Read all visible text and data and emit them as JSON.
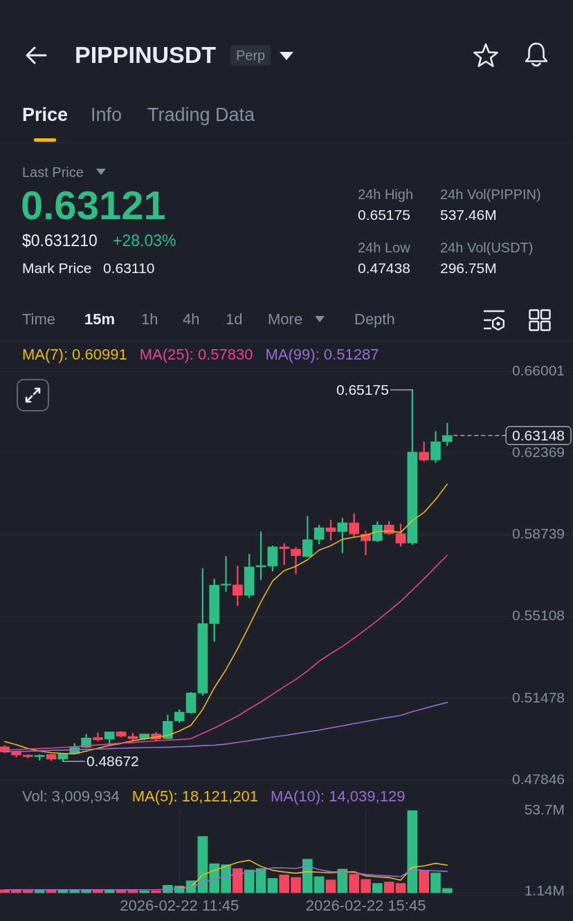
{
  "chart_data": [
    {
      "type": "other",
      "title": "PIPPINUSDT",
      "annotations": [
        "Perp",
        "Price",
        "Info",
        "Trading Data",
        "Last Price",
        "0.63121",
        "$0.631210",
        "+28.03%",
        "Mark Price",
        "0.63110",
        "24h High",
        "0.65175",
        "24h Vol(PIPPIN)",
        "537.46M",
        "24h Low",
        "0.47438",
        "24h Vol(USDT)",
        "296.75M",
        "Time",
        "15m",
        "1h",
        "4h",
        "1d",
        "More",
        "Depth"
      ]
    },
    {
      "type": "candlestick",
      "x": [
        "2026-02-22T08:00",
        "2026-02-22T08:15",
        "2026-02-22T08:30",
        "2026-02-22T08:45",
        "2026-02-22T09:00",
        "2026-02-22T09:15",
        "2026-02-22T09:30",
        "2026-02-22T09:45",
        "2026-02-22T10:00",
        "2026-02-22T10:15",
        "2026-02-22T10:30",
        "2026-02-22T10:45",
        "2026-02-22T11:00",
        "2026-02-22T11:15",
        "2026-02-22T11:30",
        "2026-02-22T11:45",
        "2026-02-22T12:00",
        "2026-02-22T12:15",
        "2026-02-22T12:30",
        "2026-02-22T12:45",
        "2026-02-22T13:00",
        "2026-02-22T13:15",
        "2026-02-22T13:30",
        "2026-02-22T13:45",
        "2026-02-22T14:00",
        "2026-02-22T14:15",
        "2026-02-22T14:30",
        "2026-02-22T14:45",
        "2026-02-22T15:00",
        "2026-02-22T15:15",
        "2026-02-22T15:30",
        "2026-02-22T15:45",
        "2026-02-22T16:00",
        "2026-02-22T16:15",
        "2026-02-22T16:30",
        "2026-02-22T16:45",
        "2026-02-22T17:00",
        "2026-02-22T17:15",
        "2026-02-22T17:30"
      ],
      "xlim": [
        "2026-02-22T07:54",
        "2026-02-22T20:11"
      ],
      "xticks": [
        {
          "value": "2026-02-22T11:45",
          "label": null
        },
        {
          "value": "2026-02-22T15:45",
          "label": null
        }
      ],
      "ohlc": [
        [
          0.4932,
          0.4937,
          0.4905,
          0.4909
        ],
        [
          0.4909,
          0.4912,
          0.4885,
          0.4895
        ],
        [
          0.4895,
          0.4897,
          0.4882,
          0.4888
        ],
        [
          0.4888,
          0.4897,
          0.4872,
          0.4894
        ],
        [
          0.4898,
          0.49,
          0.487,
          0.4877
        ],
        [
          0.4877,
          0.4904,
          0.48672,
          0.4902
        ],
        [
          0.4902,
          0.4947,
          0.49,
          0.493
        ],
        [
          0.493,
          0.4988,
          0.4928,
          0.4971
        ],
        [
          0.4973,
          0.4994,
          0.4957,
          0.4963
        ],
        [
          0.4966,
          0.4998,
          0.4945,
          0.4998
        ],
        [
          0.4998,
          0.5,
          0.4976,
          0.4979
        ],
        [
          0.4978,
          0.4993,
          0.4957,
          0.4968
        ],
        [
          0.4968,
          0.499,
          0.4963,
          0.4989
        ],
        [
          0.4989,
          0.4996,
          0.4957,
          0.4966
        ],
        [
          0.4968,
          0.5073,
          0.4966,
          0.5045
        ],
        [
          0.5047,
          0.5097,
          0.5041,
          0.5086
        ],
        [
          0.5083,
          0.5174,
          0.508,
          0.5171
        ],
        [
          0.517,
          0.5724,
          0.516,
          0.5479
        ],
        [
          0.5479,
          0.5677,
          0.54,
          0.565
        ],
        [
          0.565,
          0.5777,
          0.5622,
          0.5655
        ],
        [
          0.5651,
          0.5735,
          0.5559,
          0.5605
        ],
        [
          0.5605,
          0.5788,
          0.5594,
          0.5731
        ],
        [
          0.5731,
          0.5888,
          0.5674,
          0.5737
        ],
        [
          0.5735,
          0.5825,
          0.5712,
          0.582
        ],
        [
          0.582,
          0.5835,
          0.5741,
          0.5812
        ],
        [
          0.581,
          0.5818,
          0.57,
          0.5781
        ],
        [
          0.5777,
          0.5956,
          0.5776,
          0.5852
        ],
        [
          0.5853,
          0.5917,
          0.5833,
          0.5905
        ],
        [
          0.5905,
          0.5939,
          0.585,
          0.5888
        ],
        [
          0.5888,
          0.5948,
          0.5794,
          0.5927
        ],
        [
          0.5927,
          0.5968,
          0.5864,
          0.5878
        ],
        [
          0.5876,
          0.5891,
          0.5784,
          0.5847
        ],
        [
          0.5847,
          0.5932,
          0.5843,
          0.5917
        ],
        [
          0.5917,
          0.5934,
          0.5875,
          0.5879
        ],
        [
          0.5879,
          0.5922,
          0.5823,
          0.5837
        ],
        [
          0.5837,
          0.65175,
          0.583,
          0.6241
        ],
        [
          0.6241,
          0.6287,
          0.6201,
          0.6206
        ],
        [
          0.6206,
          0.6333,
          0.6195,
          0.6287
        ],
        [
          0.6288,
          0.637,
          0.627,
          0.63148
        ]
      ],
      "colors": [
        "#f6465d",
        "#f6465d",
        "#f6465d",
        "#2ebd85",
        "#f6465d",
        "#2ebd85",
        "#2ebd85",
        "#2ebd85",
        "#f6465d",
        "#2ebd85",
        "#f6465d",
        "#f6465d",
        "#2ebd85",
        "#f6465d",
        "#2ebd85",
        "#2ebd85",
        "#2ebd85",
        "#2ebd85",
        "#2ebd85",
        "#2ebd85",
        "#f6465d",
        "#2ebd85",
        "#2ebd85",
        "#2ebd85",
        "#f6465d",
        "#f6465d",
        "#2ebd85",
        "#2ebd85",
        "#f6465d",
        "#2ebd85",
        "#f6465d",
        "#f6465d",
        "#2ebd85",
        "#f6465d",
        "#f6465d",
        "#2ebd85",
        "#f6465d",
        "#2ebd85",
        "#2ebd85"
      ],
      "series": [
        {
          "type": "line",
          "name": "MA(7): 0.60991",
          "color": "#f0b90b",
          "values": [
            0.4955,
            0.4941,
            0.4924,
            0.4913,
            0.4906,
            0.4902,
            0.4901,
            0.4913,
            0.4925,
            0.4938,
            0.4947,
            0.4959,
            0.4967,
            0.4975,
            0.4982,
            0.5002,
            0.5028,
            0.5098,
            0.5194,
            0.5275,
            0.5368,
            0.547,
            0.5576,
            0.5668,
            0.5715,
            0.5734,
            0.5763,
            0.5806,
            0.5825,
            0.5854,
            0.5863,
            0.5872,
            0.5888,
            0.5891,
            0.5884,
            0.5937,
            0.5973,
            0.6031,
            0.6099
          ]
        },
        {
          "type": "line",
          "name": "MA(25): 0.57830",
          "color": "#e84393",
          "values": [
            0.4917,
            0.4919,
            0.4922,
            0.4924,
            0.4926,
            0.4929,
            0.4933,
            0.4936,
            0.494,
            0.4944,
            0.4948,
            0.4951,
            0.4955,
            0.4958,
            0.4961,
            0.4964,
            0.4968,
            0.4992,
            0.5015,
            0.5042,
            0.5068,
            0.5101,
            0.5131,
            0.5165,
            0.5199,
            0.5231,
            0.5269,
            0.5312,
            0.5346,
            0.5378,
            0.5415,
            0.5453,
            0.5493,
            0.5535,
            0.5578,
            0.5628,
            0.5678,
            0.5731,
            0.5783
          ]
        },
        {
          "type": "line",
          "name": "MA(99): 0.51287",
          "color": "#9a6bd9",
          "values": [
            0.4909,
            0.4911,
            0.4912,
            0.4914,
            0.4916,
            0.4917,
            0.4919,
            0.4921,
            0.4922,
            0.4924,
            0.4925,
            0.4927,
            0.4928,
            0.4929,
            0.493,
            0.4932,
            0.4934,
            0.4937,
            0.4939,
            0.4944,
            0.4951,
            0.4959,
            0.4967,
            0.4975,
            0.4982,
            0.499,
            0.4998,
            0.5006,
            0.5016,
            0.5025,
            0.5035,
            0.5044,
            0.5054,
            0.5063,
            0.5071,
            0.5088,
            0.5102,
            0.5116,
            0.5129
          ]
        }
      ],
      "ylim": [
        0.47846,
        0.66001
      ],
      "yticks": [
        0.47846,
        0.51478,
        0.55108,
        0.58739,
        0.62369,
        0.66001
      ],
      "grid": true,
      "legend": "top",
      "tick_labels": "y",
      "ref_lines": [
        {
          "axis": "y",
          "value": 0.63148,
          "label": "0.63148",
          "line_style": "dashed",
          "color": "#eaecef"
        }
      ],
      "annotations": [
        {
          "text": "0.65175",
          "x": "2026-02-22T16:45",
          "y": 0.65175
        },
        {
          "text": "0.48672",
          "x": "2026-02-22T09:15",
          "y": 0.48672
        }
      ]
    },
    {
      "type": "bar",
      "x": [
        "2026-02-22T08:00",
        "2026-02-22T08:15",
        "2026-02-22T08:30",
        "2026-02-22T08:45",
        "2026-02-22T09:00",
        "2026-02-22T09:15",
        "2026-02-22T09:30",
        "2026-02-22T09:45",
        "2026-02-22T10:00",
        "2026-02-22T10:15",
        "2026-02-22T10:30",
        "2026-02-22T10:45",
        "2026-02-22T11:00",
        "2026-02-22T11:15",
        "2026-02-22T11:30",
        "2026-02-22T11:45",
        "2026-02-22T12:00",
        "2026-02-22T12:15",
        "2026-02-22T12:30",
        "2026-02-22T12:45",
        "2026-02-22T13:00",
        "2026-02-22T13:15",
        "2026-02-22T13:30",
        "2026-02-22T13:45",
        "2026-02-22T14:00",
        "2026-02-22T14:15",
        "2026-02-22T14:30",
        "2026-02-22T14:45",
        "2026-02-22T15:00",
        "2026-02-22T15:15",
        "2026-02-22T15:30",
        "2026-02-22T15:45",
        "2026-02-22T16:00",
        "2026-02-22T16:15",
        "2026-02-22T16:30",
        "2026-02-22T16:45",
        "2026-02-22T17:00",
        "2026-02-22T17:15",
        "2026-02-22T17:30"
      ],
      "xlim": [
        "2026-02-22T07:54",
        "2026-02-22T20:11"
      ],
      "xticks": [
        {
          "value": "2026-02-22T11:45",
          "label": "2026-02-22 11:45"
        },
        {
          "value": "2026-02-22T15:45",
          "label": "2026-02-22 15:45"
        }
      ],
      "series": [
        {
          "values": [
            2.1,
            2.3,
            1.8,
            1.8,
            2.3,
            1.9,
            2.1,
            2.1,
            2.1,
            2.1,
            2.1,
            2.1,
            1.5,
            1.5,
            5.1,
            4.6,
            8.0,
            36.8,
            19.1,
            18.4,
            16.0,
            15.1,
            16.0,
            9.5,
            11.8,
            10.2,
            22.0,
            10.7,
            8.5,
            15.6,
            12.1,
            8.9,
            6.3,
            7.2,
            6.3,
            53.7,
            14.6,
            13.0,
            3.0
          ],
          "colors": [
            "#f6465d",
            "#f6465d",
            "#f6465d",
            "#2ebd85",
            "#f6465d",
            "#2ebd85",
            "#2ebd85",
            "#2ebd85",
            "#f6465d",
            "#2ebd85",
            "#f6465d",
            "#f6465d",
            "#2ebd85",
            "#f6465d",
            "#2ebd85",
            "#2ebd85",
            "#2ebd85",
            "#2ebd85",
            "#2ebd85",
            "#2ebd85",
            "#f6465d",
            "#2ebd85",
            "#2ebd85",
            "#2ebd85",
            "#f6465d",
            "#f6465d",
            "#2ebd85",
            "#2ebd85",
            "#f6465d",
            "#2ebd85",
            "#f6465d",
            "#f6465d",
            "#2ebd85",
            "#f6465d",
            "#f6465d",
            "#2ebd85",
            "#f6465d",
            "#2ebd85",
            "#2ebd85"
          ]
        },
        {
          "type": "line",
          "name": "MA(5): 18,121,201",
          "color": "#f0b90b",
          "values": [
            null,
            null,
            null,
            null,
            null,
            null,
            null,
            null,
            null,
            null,
            null,
            null,
            null,
            null,
            null,
            3.2,
            3.8,
            11.8,
            14.7,
            17.3,
            19.9,
            21.3,
            17.3,
            14.8,
            13.7,
            12.9,
            13.9,
            13.5,
            13.2,
            13.7,
            13.9,
            11.2,
            10.6,
            10.0,
            8.4,
            16.7,
            17.7,
            19.3,
            18.1
          ]
        },
        {
          "type": "line",
          "name": "MA(10): 14,039,129",
          "color": "#9a6bd9",
          "values": [
            2.2,
            2.2,
            2.2,
            2.2,
            2.2,
            2.2,
            2.2,
            2.2,
            2.2,
            2.2,
            2.2,
            2.2,
            2.2,
            2.2,
            2.4,
            2.6,
            4.1,
            6.5,
            9.0,
            11.0,
            12.3,
            13.5,
            14.7,
            16.4,
            16.3,
            16.0,
            17.7,
            15.2,
            13.9,
            13.7,
            13.2,
            12.1,
            11.6,
            11.1,
            10.7,
            15.3,
            14.7,
            14.4,
            14.0
          ]
        }
      ],
      "ylim": [
        0,
        53.7
      ],
      "yticks": [
        {
          "value": 1.14,
          "label": "1.14M"
        },
        {
          "value": 53.7,
          "label": "53.7M"
        }
      ],
      "grid": "x",
      "legend": "top",
      "annotations": [
        "Vol: 3,009,934"
      ]
    }
  ]
}
